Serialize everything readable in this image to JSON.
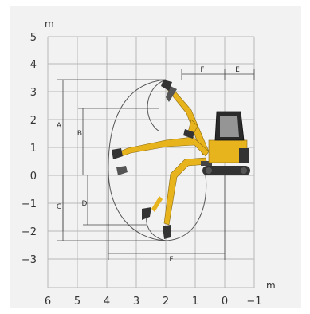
{
  "diagram": {
    "x_axis": {
      "unit": "m",
      "ticks": [
        "6",
        "5",
        "4",
        "3",
        "2",
        "1",
        "0",
        "−1"
      ]
    },
    "y_axis": {
      "unit": "m",
      "ticks": [
        "5",
        "4",
        "3",
        "2",
        "1",
        "0",
        "−1",
        "−2",
        "−3"
      ]
    },
    "dimension_labels": {
      "top_right_1": "F",
      "top_right_2": "E",
      "left_outer": "A",
      "left_inner_upper": "B",
      "left_inner_lower": "D",
      "left_lower": "C",
      "bottom": "F"
    },
    "colors": {
      "background": "#f2f2f2",
      "grid": "#b8b8b8",
      "machine": "#e8b41e",
      "machine_dark": "#333333"
    }
  }
}
